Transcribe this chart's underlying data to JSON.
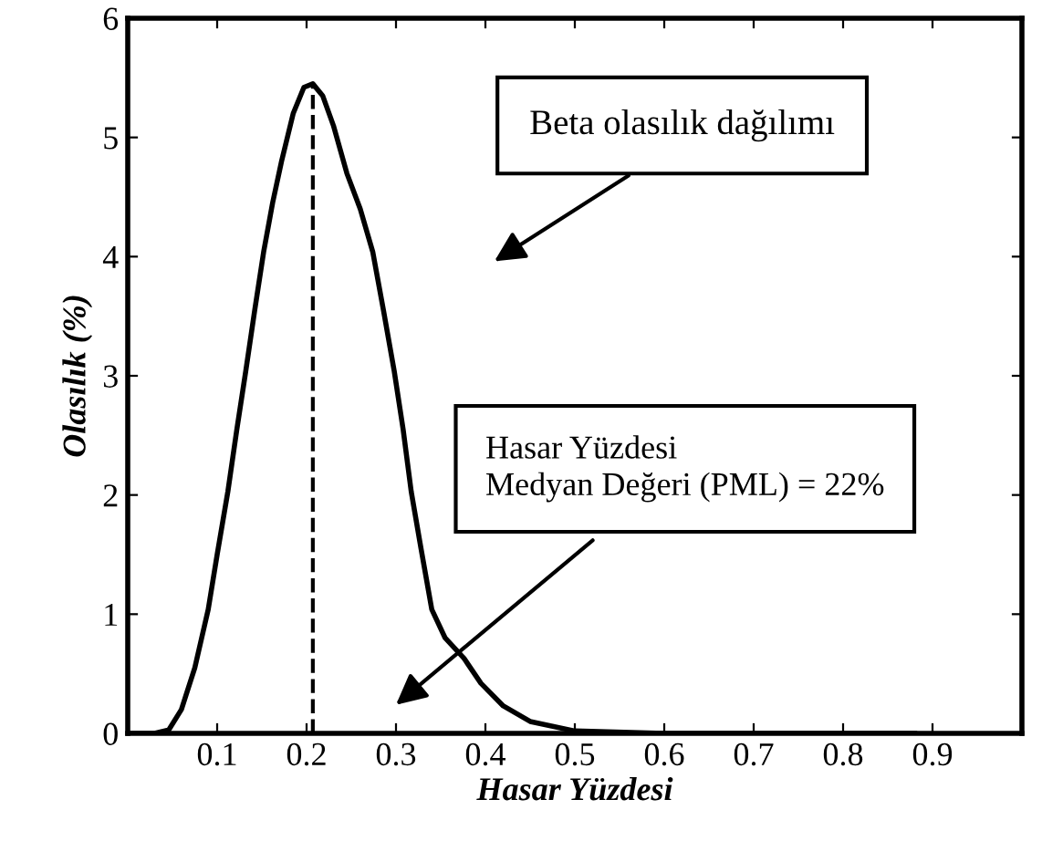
{
  "chart_data": {
    "type": "line",
    "xlabel": "Hasar Yüzdesi",
    "ylabel": "Olasılık (%)",
    "x": [
      0,
      0.03,
      0.046,
      0.06,
      0.075,
      0.09,
      0.1,
      0.112,
      0.122,
      0.132,
      0.142,
      0.152,
      0.162,
      0.172,
      0.185,
      0.197,
      0.207,
      0.218,
      0.23,
      0.245,
      0.26,
      0.274,
      0.286,
      0.298,
      0.308,
      0.317,
      0.328,
      0.34,
      0.355,
      0.376,
      0.395,
      0.42,
      0.45,
      0.5,
      0.6,
      0.7,
      0.8,
      0.88
    ],
    "series": [
      {
        "color": "#000000",
        "values": [
          0,
          0,
          0.03,
          0.2,
          0.55,
          1.04,
          1.5,
          2.03,
          2.55,
          3.04,
          3.55,
          4.04,
          4.45,
          4.8,
          5.2,
          5.42,
          5.45,
          5.35,
          5.1,
          4.7,
          4.4,
          4.04,
          3.55,
          3.04,
          2.55,
          2.03,
          1.55,
          1.04,
          0.8,
          0.63,
          0.42,
          0.23,
          0.1,
          0.02,
          0,
          0,
          0,
          0
        ]
      }
    ],
    "xlim": [
      0,
      1
    ],
    "ylim": [
      0,
      6
    ],
    "xticks": [
      0.1,
      0.2,
      0.3,
      0.4,
      0.5,
      0.6,
      0.7,
      0.8,
      0.9
    ],
    "yticks": [
      0,
      1,
      2,
      3,
      4,
      5,
      6
    ],
    "ref_lines": [
      {
        "axis": "x",
        "value": 0.207,
        "color": "#000000",
        "line_style": "dashed"
      }
    ],
    "annotations": [
      "Beta olasılık dağılımı",
      "Hasar Yüzdesi\nMedyan Değeri (PML) = 22%"
    ],
    "grid": false,
    "legend": false,
    "marker": "none",
    "line_style": "solid"
  }
}
